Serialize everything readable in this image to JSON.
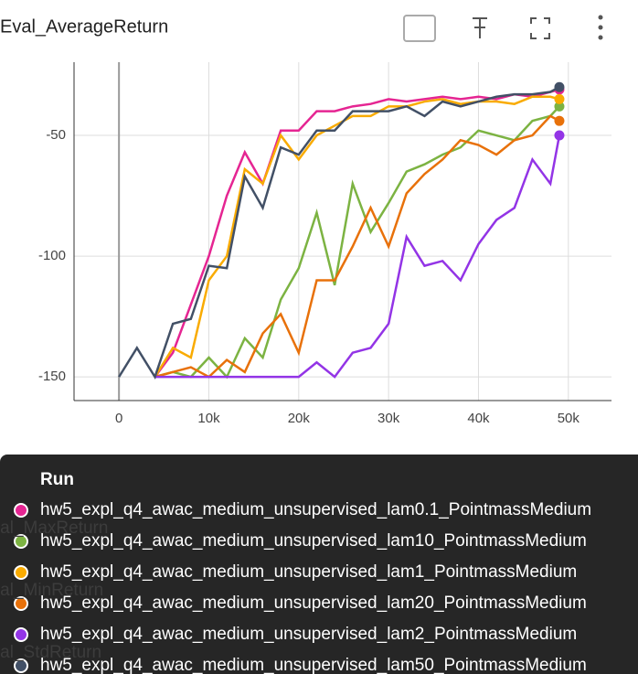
{
  "chart_data": {
    "type": "line",
    "title": "Eval_AverageReturn",
    "x": [
      0,
      2000,
      4000,
      6000,
      8000,
      10000,
      12000,
      14000,
      16000,
      18000,
      20000,
      22000,
      24000,
      26000,
      28000,
      30000,
      32000,
      34000,
      36000,
      38000,
      40000,
      42000,
      44000,
      46000,
      48000,
      49000
    ],
    "series": [
      {
        "name": "hw5_expl_q4_awac_medium_unsupervised_lam0.1_PointmassMedium",
        "color": "#e52592",
        "values": [
          null,
          null,
          -150,
          -140,
          -120,
          -100,
          -75,
          -57,
          -70,
          -48,
          -48,
          -40,
          -40,
          -38,
          -37,
          -35,
          -36,
          -35,
          -34,
          -35,
          -34,
          -35,
          -33,
          -34,
          -32,
          -31
        ]
      },
      {
        "name": "hw5_expl_q4_awac_medium_unsupervised_lam10_PointmassMedium",
        "color": "#7cb342",
        "values": [
          null,
          null,
          -150,
          -148,
          -150,
          -142,
          -150,
          -134,
          -142,
          -118,
          -105,
          -82,
          -112,
          -70,
          -90,
          -78,
          -65,
          -62,
          -58,
          -55,
          -48,
          -50,
          -52,
          -44,
          -42,
          -38
        ]
      },
      {
        "name": "hw5_expl_q4_awac_medium_unsupervised_lam1_PointmassMedium",
        "color": "#f9ab00",
        "values": [
          null,
          null,
          -150,
          -138,
          -142,
          -110,
          -100,
          -64,
          -70,
          -50,
          -60,
          -50,
          -46,
          -42,
          -42,
          -38,
          -38,
          -36,
          -35,
          -37,
          -36,
          -36,
          -37,
          -34,
          -34,
          -35
        ]
      },
      {
        "name": "hw5_expl_q4_awac_medium_unsupervised_lam20_PointmassMedium",
        "color": "#e8710a",
        "values": [
          null,
          null,
          -150,
          -148,
          -146,
          -150,
          -143,
          -148,
          -132,
          -124,
          -140,
          -110,
          -110,
          -96,
          -80,
          -96,
          -74,
          -66,
          -60,
          -52,
          -54,
          -58,
          -52,
          -50,
          -42,
          -44
        ]
      },
      {
        "name": "hw5_expl_q4_awac_medium_unsupervised_lam2_PointmassMedium",
        "color": "#9334e6",
        "values": [
          null,
          null,
          -150,
          -150,
          -150,
          -150,
          -150,
          -150,
          -150,
          -150,
          -150,
          -144,
          -150,
          -140,
          -138,
          -128,
          -92,
          -104,
          -102,
          -110,
          -95,
          -85,
          -80,
          -60,
          -70,
          -50
        ]
      },
      {
        "name": "hw5_expl_q4_awac_medium_unsupervised_lam50_PointmassMedium",
        "color": "#425066",
        "values": [
          -150,
          -138,
          -150,
          -128,
          -126,
          -104,
          -105,
          -67,
          -80,
          -55,
          -58,
          -48,
          -48,
          -40,
          -40,
          -40,
          -38,
          -42,
          -36,
          -38,
          -36,
          -34,
          -33,
          -33,
          -32,
          -30
        ]
      }
    ],
    "xlim": [
      -5000,
      54800
    ],
    "ylim": [
      -159.8,
      -19.7
    ],
    "xticks": [
      0,
      {
        "value": 10000,
        "label": "10k"
      },
      {
        "value": 20000,
        "label": "20k"
      },
      {
        "value": 30000,
        "label": "30k"
      },
      {
        "value": 40000,
        "label": "40k"
      },
      {
        "value": 50000,
        "label": "50k"
      }
    ],
    "yticks": [
      -150,
      -100,
      -50
    ],
    "grid": true,
    "legend_title": "Run"
  },
  "background_cards": [
    "Eval_MaxReturn",
    "Eval_MinReturn",
    "Eval_StdReturn"
  ]
}
